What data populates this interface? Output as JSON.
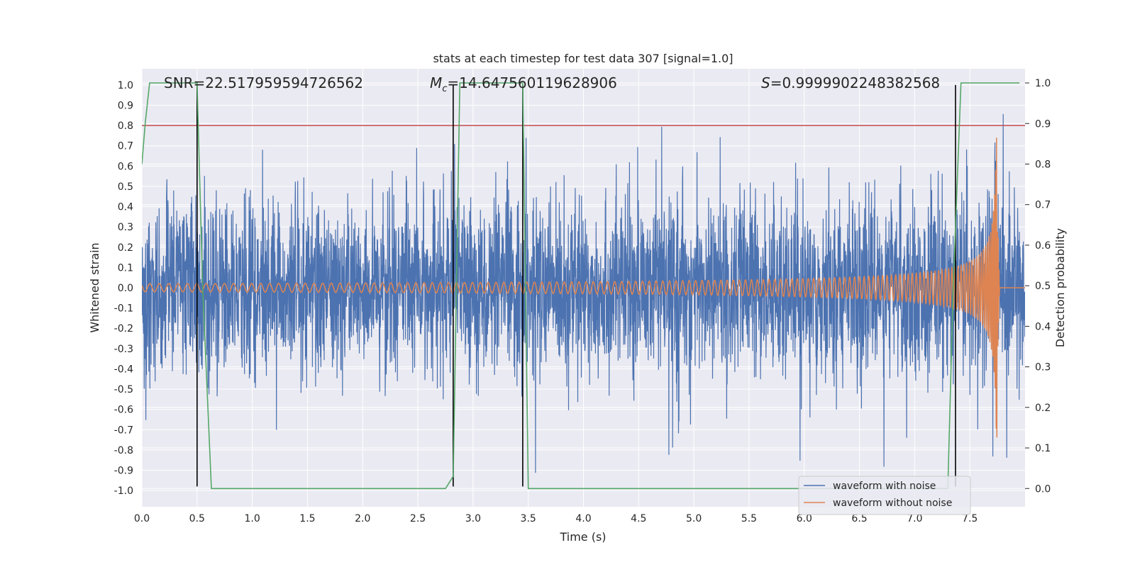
{
  "chart_data": {
    "type": "line",
    "title": "stats at each timestep for test data 307 [signal=1.0]",
    "xlabel": "Time (s)",
    "ylabel": "Whitened strain",
    "y2label": "Detection probability",
    "xlim": [
      0.0,
      8.0
    ],
    "ylim": [
      -1.08,
      1.08
    ],
    "y2lim": [
      -0.045,
      1.035
    ],
    "xticks": [
      "0.0",
      "0.5",
      "1.0",
      "1.5",
      "2.0",
      "2.5",
      "3.0",
      "3.5",
      "4.0",
      "4.5",
      "5.0",
      "5.5",
      "6.0",
      "6.5",
      "7.0",
      "7.5"
    ],
    "yticks": [
      "1.0",
      "0.9",
      "0.8",
      "0.7",
      "0.6",
      "0.5",
      "0.4",
      "0.3",
      "0.2",
      "0.1",
      "0.0",
      "-0.1",
      "-0.2",
      "-0.3",
      "-0.4",
      "-0.5",
      "-0.6",
      "-0.7",
      "-0.8",
      "-0.9",
      "-1.0"
    ],
    "y2ticks": [
      "1.0",
      "0.9",
      "0.8",
      "0.7",
      "0.6",
      "0.5",
      "0.4",
      "0.3",
      "0.2",
      "0.1",
      "0.0"
    ],
    "grid": true,
    "legend_position": "lower-right",
    "annotations": {
      "snr": "SNR=22.517959594726562",
      "mc_symbol": "M",
      "mc_subscript": "c",
      "mc_value": "=14.647560119628906",
      "s_symbol": "S",
      "s_value": "=0.9999902248382568"
    },
    "threshold": {
      "value": 0.8,
      "color": "#c44e52"
    },
    "vertical_markers": [
      0.5,
      2.82,
      3.45,
      7.37
    ],
    "series": [
      {
        "name": "waveform with noise",
        "color": "#4c72b0",
        "description": "noisy whitened strain spanning roughly -0.7 to 0.8, peaks near 7.75 s"
      },
      {
        "name": "waveform without noise",
        "color": "#dd8452",
        "chirp_merger_time": 7.75,
        "chirp_peak_amplitude": 0.75
      },
      {
        "color": "#55a868",
        "x": [
          0.0,
          0.03,
          0.07,
          0.12,
          0.5,
          0.55,
          0.63,
          0.8,
          2.75,
          2.82,
          2.88,
          3.4,
          3.45,
          3.5,
          7.3,
          7.35,
          7.42,
          7.95
        ],
        "y": [
          0.8,
          0.9,
          1.0,
          1.0,
          1.0,
          0.5,
          0.0,
          0.0,
          0.0,
          0.03,
          1.0,
          1.0,
          1.0,
          0.0,
          0.0,
          0.5,
          1.0,
          1.0
        ]
      }
    ]
  }
}
